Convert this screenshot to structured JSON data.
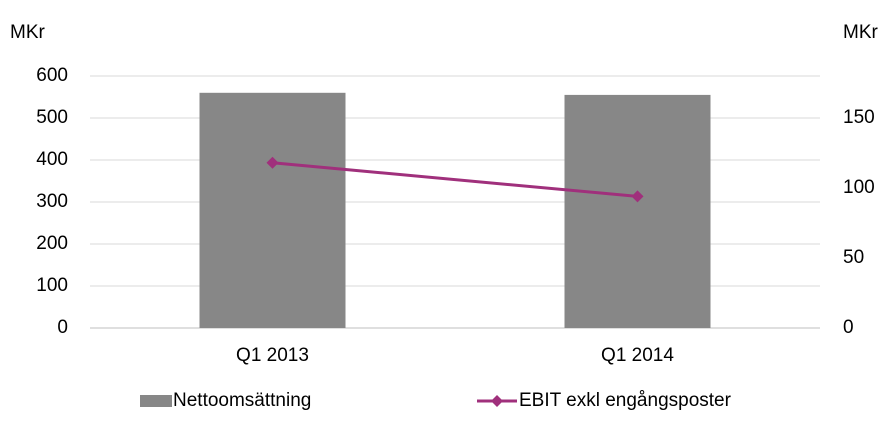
{
  "chart_data": {
    "type": "bar_line",
    "y_label": "MKr",
    "y2_label": "MKr",
    "categories": [
      "Q1 2013",
      "Q1 2014"
    ],
    "series": [
      {
        "name": "Nettoomsättning",
        "type": "bar",
        "color": "#878787",
        "values": [
          560,
          555
        ]
      },
      {
        "name": "EBIT exkl engångsposter",
        "type": "line",
        "color": "#a0307c",
        "axis": "y2",
        "values": [
          118,
          94
        ]
      }
    ],
    "ylim": [
      0,
      600
    ],
    "yticks": [
      0,
      100,
      200,
      300,
      400,
      500,
      600
    ],
    "y2lim": [
      0,
      180
    ],
    "y2ticks": [
      0,
      50,
      100,
      150
    ],
    "grid": true,
    "legend": "bottom"
  }
}
